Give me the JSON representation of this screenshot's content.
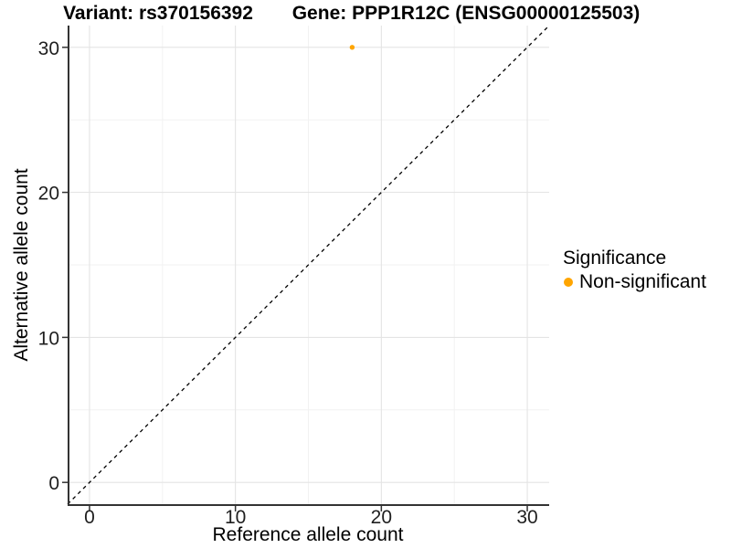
{
  "figure": {
    "background": "#FFFFFF"
  },
  "chart_data": {
    "type": "scatter",
    "title_left": "Variant: rs370156392",
    "title_right": "Gene: PPP1R12C (ENSG00000125503)",
    "xlabel": "Reference allele count",
    "ylabel": "Alternative allele count",
    "xlim": [
      -1.5,
      31.5
    ],
    "ylim": [
      -1.5,
      31.5
    ],
    "x_ticks": [
      0,
      10,
      20,
      30
    ],
    "y_ticks": [
      0,
      10,
      20,
      30
    ],
    "x_minor_ticks": [
      5,
      15,
      25
    ],
    "y_minor_ticks": [
      5,
      15,
      25
    ],
    "grid": {
      "enabled": true,
      "major_color": "#E4E4E4",
      "minor_color": "#F2F2F2"
    },
    "axis_color": "#333333",
    "tick_label_color": "#1F1F1F",
    "identity_line": {
      "style": "dashed",
      "color": "#000000",
      "x1": -1.5,
      "y1": -1.5,
      "x2": 31.5,
      "y2": 31.5
    },
    "series": [
      {
        "name": "Non-significant",
        "color": "#FFA500",
        "point_radius": 2.7,
        "points": [
          {
            "x": 18,
            "y": 30
          }
        ]
      }
    ],
    "legend": {
      "title": "Significance",
      "position": "right"
    }
  }
}
